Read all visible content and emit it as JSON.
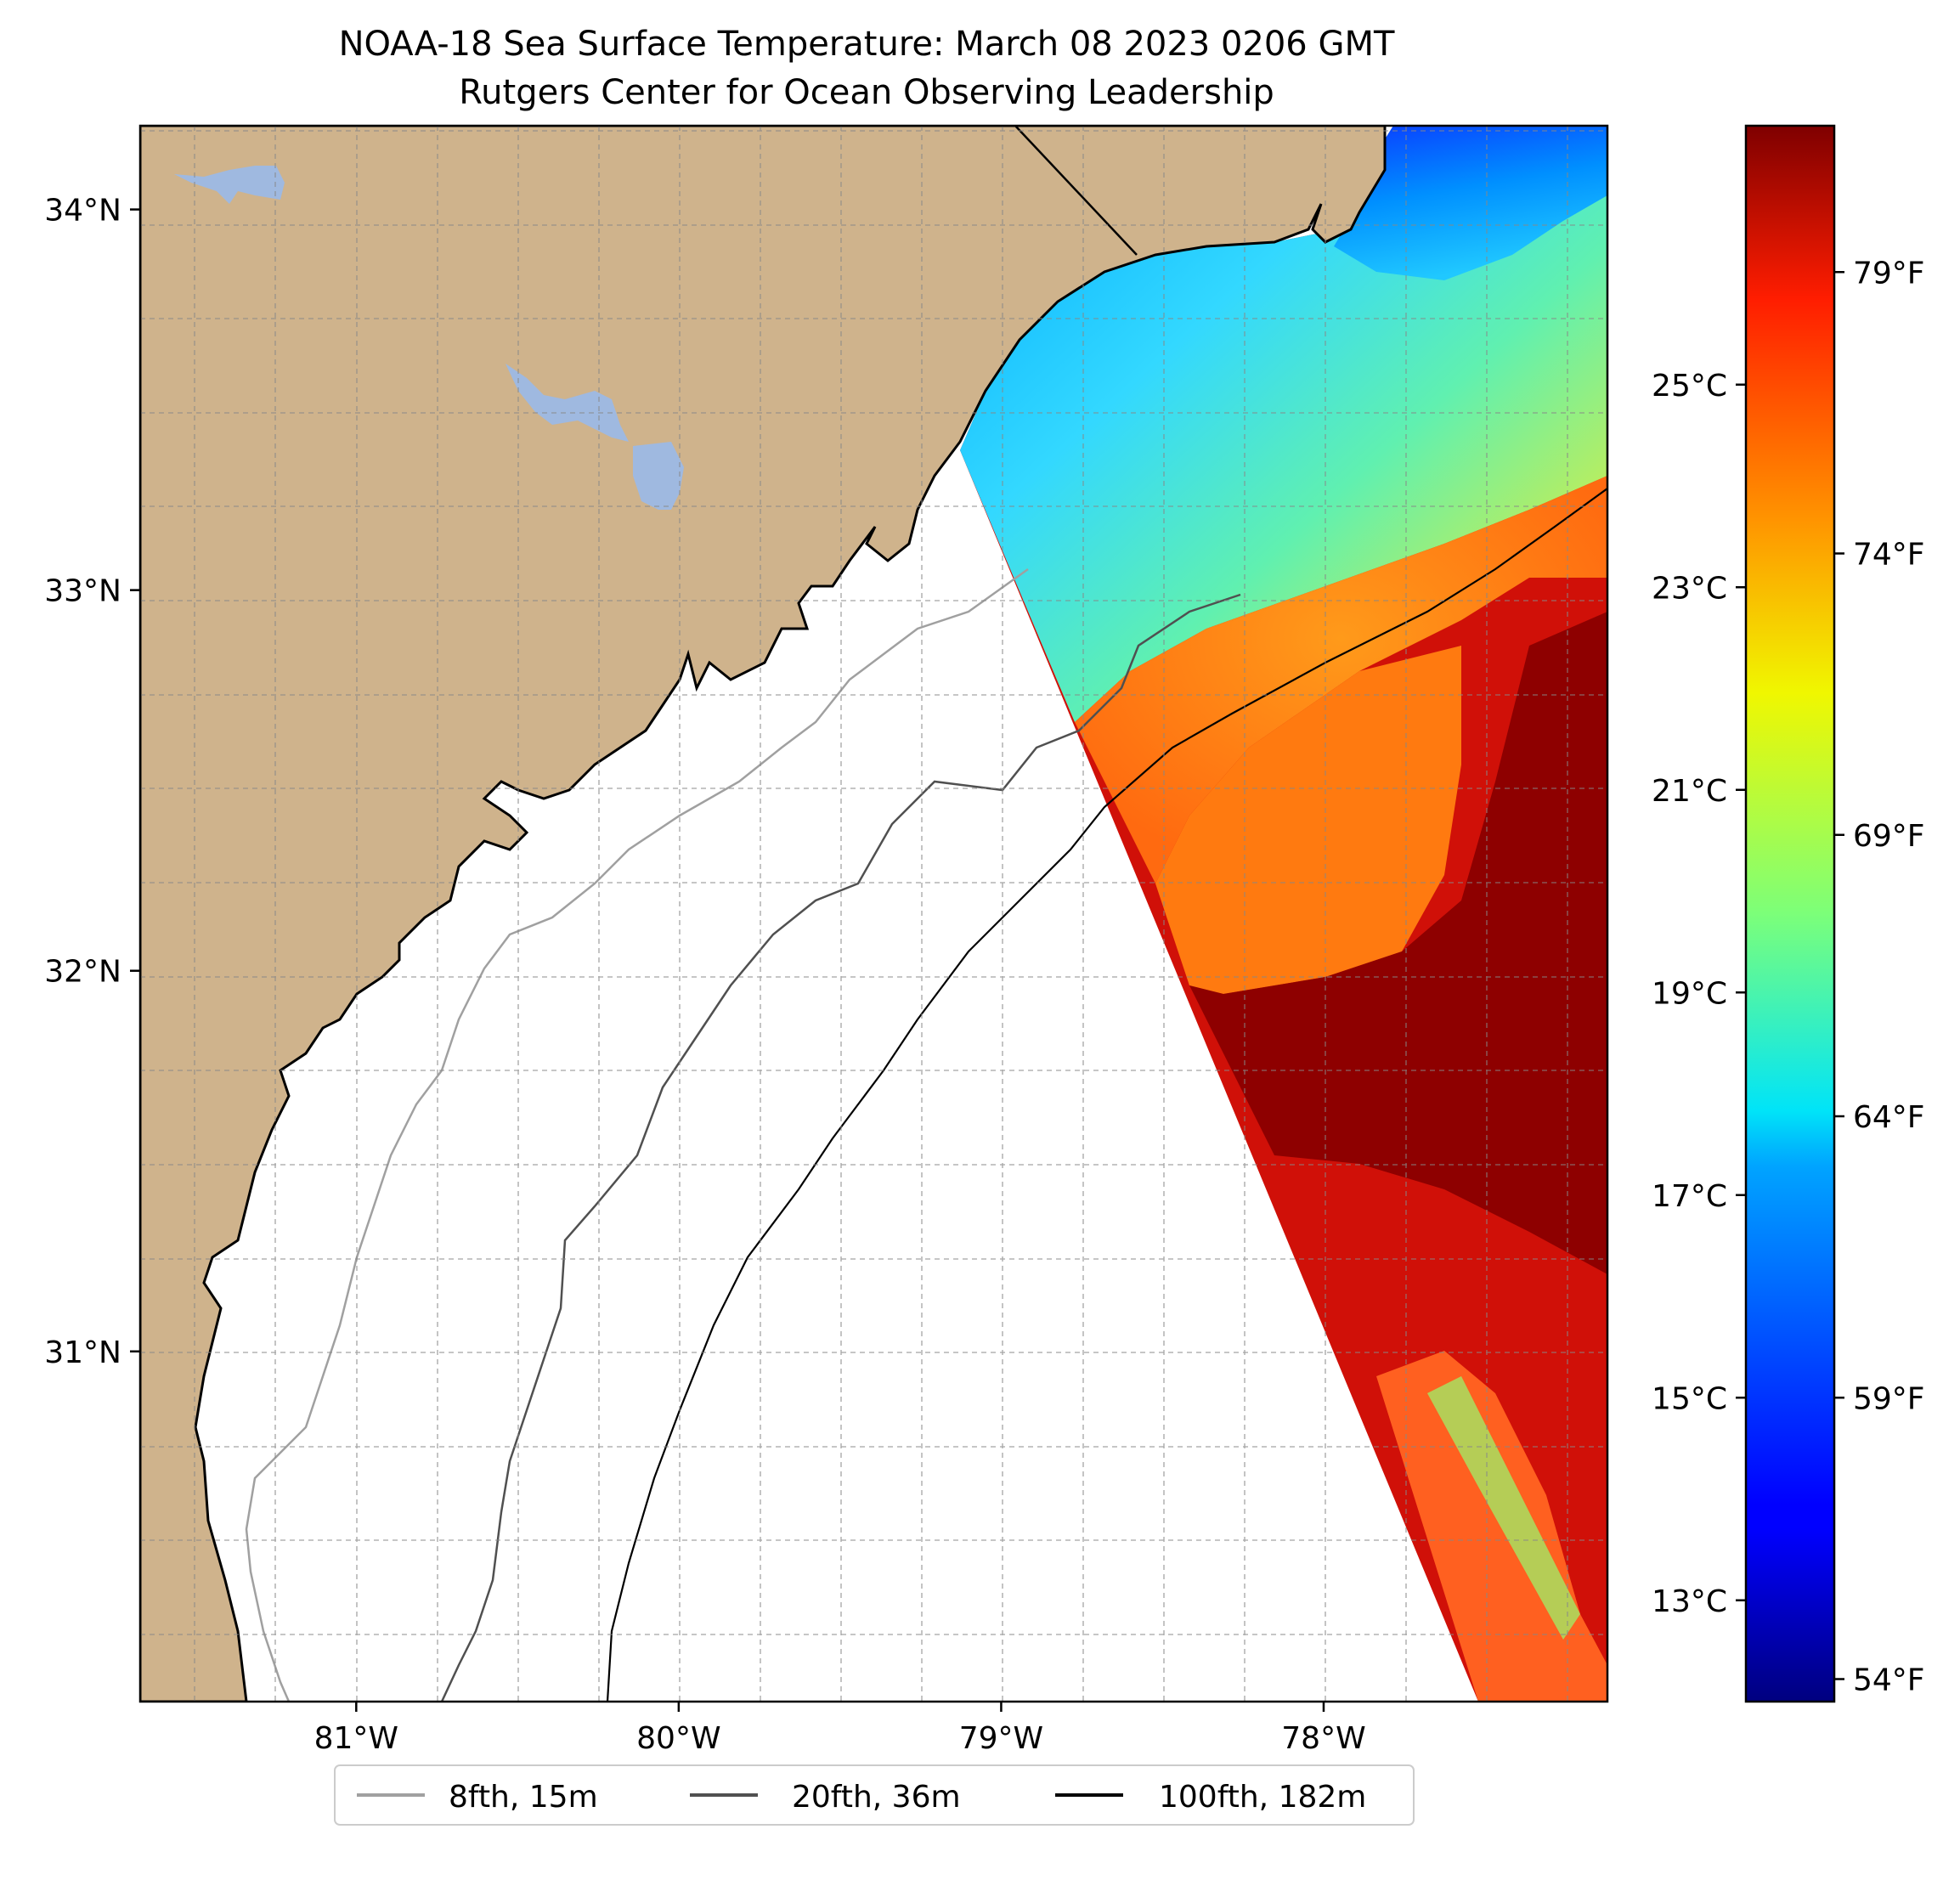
{
  "title": {
    "line1": "NOAA-18 Sea Surface Temperature: March 08 2023 0206 GMT",
    "line2": "Rutgers Center for Ocean Observing Leadership"
  },
  "map": {
    "lon_range": [
      -81.67,
      -77.12
    ],
    "lat_range": [
      30.08,
      34.22
    ],
    "lon_ticks": [
      {
        "value": -81,
        "label": "81°W"
      },
      {
        "value": -80,
        "label": "80°W"
      },
      {
        "value": -79,
        "label": "79°W"
      },
      {
        "value": -78,
        "label": "78°W"
      }
    ],
    "lat_ticks": [
      {
        "value": 31,
        "label": "31°N"
      },
      {
        "value": 32,
        "label": "32°N"
      },
      {
        "value": 33,
        "label": "33°N"
      },
      {
        "value": 34,
        "label": "34°N"
      }
    ],
    "grid": true,
    "land_color": "#cfb38c",
    "lake_color": "#9fb9e0"
  },
  "colorbar": {
    "colormap": "jet",
    "celsius_ticks": [
      {
        "value": 13,
        "label": "13°C"
      },
      {
        "value": 15,
        "label": "15°C"
      },
      {
        "value": 17,
        "label": "17°C"
      },
      {
        "value": 19,
        "label": "19°C"
      },
      {
        "value": 21,
        "label": "21°C"
      },
      {
        "value": 23,
        "label": "23°C"
      },
      {
        "value": 25,
        "label": "25°C"
      }
    ],
    "fahrenheit_ticks": [
      {
        "value": 54,
        "label": "54°F"
      },
      {
        "value": 59,
        "label": "59°F"
      },
      {
        "value": 64,
        "label": "64°F"
      },
      {
        "value": 69,
        "label": "69°F"
      },
      {
        "value": 74,
        "label": "74°F"
      },
      {
        "value": 79,
        "label": "79°F"
      }
    ]
  },
  "legend": {
    "placement": "bottom-center",
    "items": [
      {
        "label": "8fth, 15m",
        "color": "#a0a0a0"
      },
      {
        "label": "20fth, 36m",
        "color": "#505050"
      },
      {
        "label": "100fth, 182m",
        "color": "#000000"
      }
    ]
  }
}
